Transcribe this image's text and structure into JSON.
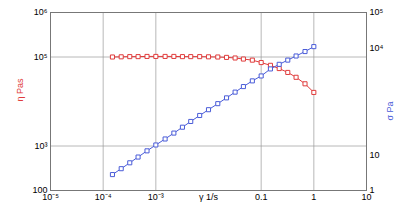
{
  "chart_data": {
    "type": "line",
    "log": true,
    "grid": true,
    "xlabel": "γ 1/s",
    "ylabel": "η Pas",
    "y2label": "σ Pa",
    "x": [
      0.00015,
      0.00022,
      0.00032,
      0.00046,
      0.00068,
      0.001,
      0.0015,
      0.0022,
      0.0032,
      0.0046,
      0.0068,
      0.01,
      0.015,
      0.022,
      0.032,
      0.046,
      0.068,
      0.1,
      0.15,
      0.22,
      0.32,
      0.46,
      0.68,
      1
    ],
    "xlim": [
      1e-05,
      10
    ],
    "xticks": [
      {
        "value": 1e-05,
        "label": "10⁻⁵"
      },
      {
        "value": 0.0001,
        "label": "10⁻⁴"
      },
      {
        "value": 0.001,
        "label": "10⁻³"
      },
      0.1,
      1,
      10
    ],
    "ylim": [
      100,
      1000000
    ],
    "yticks": [
      100,
      {
        "value": 1000,
        "label": "10³"
      },
      {
        "value": 100000,
        "label": "10⁵"
      },
      {
        "value": 1000000,
        "label": "10⁶"
      }
    ],
    "y2lim": [
      1,
      100000
    ],
    "y2ticks": [
      1,
      10,
      {
        "value": 10000,
        "label": "10⁴"
      },
      {
        "value": 100000,
        "label": "10⁵"
      }
    ],
    "series": [
      {
        "color": "#e03c3c",
        "marker": "square",
        "line_style": "solid",
        "values": [
          100000,
          101000,
          102000,
          102000,
          103000,
          103000,
          103000,
          103000,
          102000,
          102000,
          102000,
          101000,
          100000,
          98000,
          95000,
          90000,
          85000,
          75000,
          65000,
          55000,
          45000,
          35000,
          25000,
          16000
        ]
      },
      {
        "color": "#4a5cd8",
        "marker": "square",
        "line_style": "solid",
        "axis": "y2",
        "values": [
          2.8,
          4.1,
          6,
          8.7,
          13,
          19,
          28,
          41,
          60,
          87,
          128,
          186,
          275,
          400,
          580,
          830,
          1200,
          1650,
          2600,
          3500,
          4600,
          6000,
          8000,
          11000
        ]
      }
    ]
  }
}
